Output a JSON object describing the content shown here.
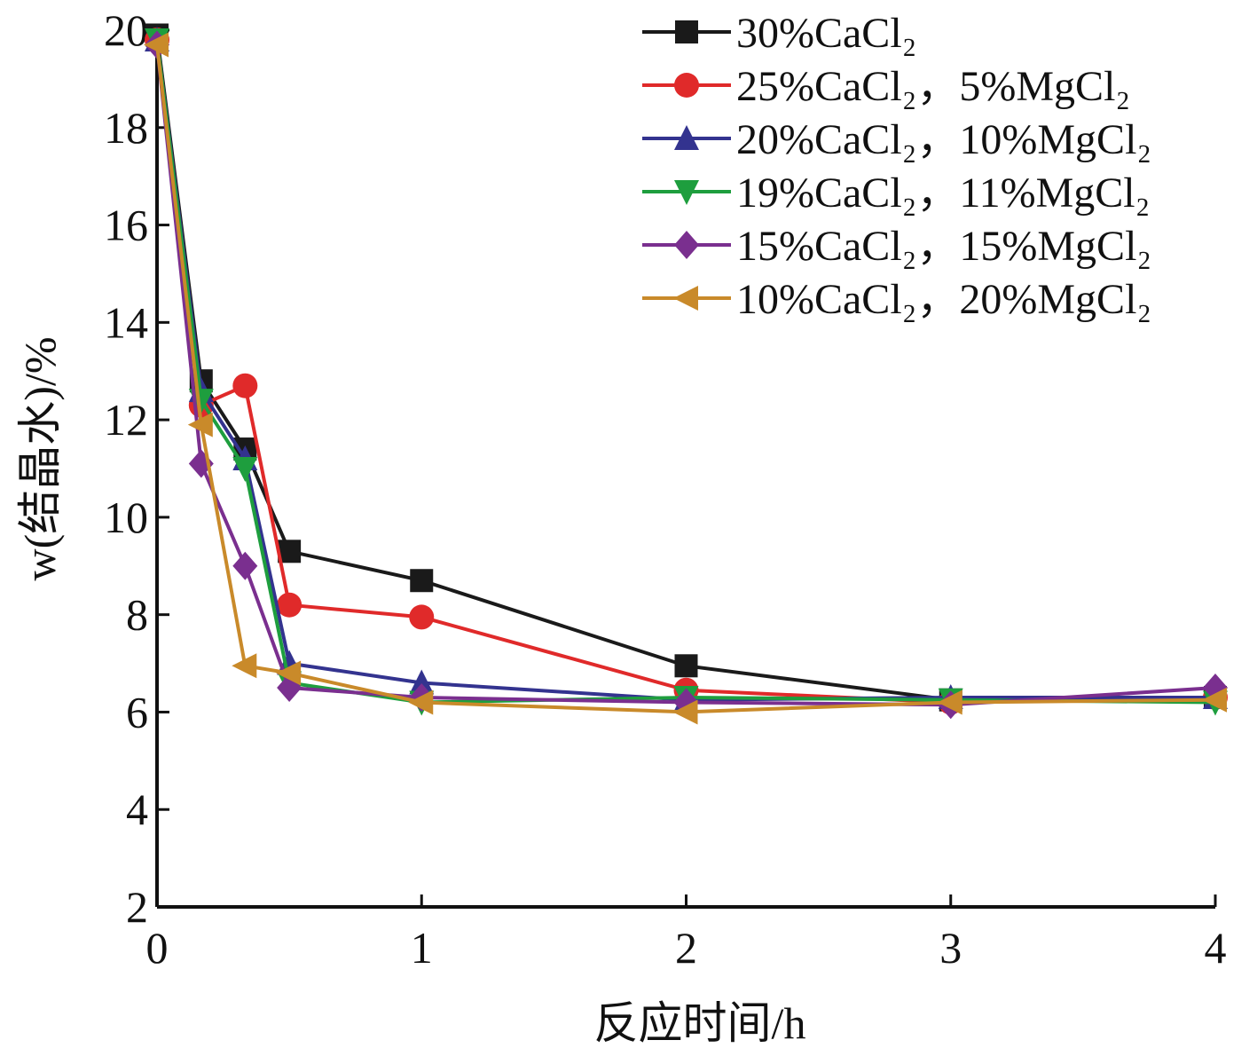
{
  "chart_data": {
    "type": "line",
    "xlabel": "反应时间/h",
    "ylabel": "w(结晶水)/%",
    "xlim": [
      0,
      4
    ],
    "ylim": [
      2,
      20
    ],
    "xticks": [
      0,
      1,
      2,
      3,
      4
    ],
    "yticks": [
      2,
      4,
      6,
      8,
      10,
      12,
      14,
      16,
      18,
      20
    ],
    "grid": false,
    "legend_position": "top-right",
    "series": [
      {
        "name": "30%CaCl₂",
        "marker": "square",
        "color": "#1a1a1a",
        "x": [
          0,
          0.167,
          0.333,
          0.5,
          1,
          2,
          3,
          4
        ],
        "y": [
          19.9,
          12.8,
          11.4,
          9.3,
          8.7,
          6.95,
          6.25,
          6.3
        ]
      },
      {
        "name": "25%CaCl₂，5%MgCl₂",
        "marker": "circle",
        "color": "#e02a2a",
        "x": [
          0,
          0.167,
          0.333,
          0.5,
          1,
          2,
          3,
          4
        ],
        "y": [
          19.8,
          12.3,
          12.7,
          8.2,
          7.95,
          6.45,
          6.2,
          6.3
        ]
      },
      {
        "name": "20%CaCl₂，10%MgCl₂",
        "marker": "triangle-up",
        "color": "#33338f",
        "x": [
          0,
          0.167,
          0.333,
          0.5,
          1,
          2,
          3,
          4
        ],
        "y": [
          19.8,
          12.6,
          11.2,
          7.0,
          6.6,
          6.25,
          6.3,
          6.3
        ]
      },
      {
        "name": "19%CaCl₂，11%MgCl₂",
        "marker": "triangle-down",
        "color": "#1e9e3e",
        "x": [
          0,
          0.167,
          0.333,
          0.5,
          1,
          2,
          3,
          4
        ],
        "y": [
          19.8,
          12.4,
          11.0,
          6.6,
          6.2,
          6.3,
          6.25,
          6.2
        ]
      },
      {
        "name": "15%CaCl₂，15%MgCl₂",
        "marker": "diamond",
        "color": "#7a2f8f",
        "x": [
          0,
          0.167,
          0.333,
          0.5,
          1,
          2,
          3,
          4
        ],
        "y": [
          19.7,
          11.1,
          9.0,
          6.5,
          6.3,
          6.2,
          6.15,
          6.5
        ]
      },
      {
        "name": "10%CaCl₂，20%MgCl₂",
        "marker": "triangle-left",
        "color": "#c98a2a",
        "x": [
          0,
          0.167,
          0.333,
          0.5,
          1,
          2,
          3,
          4
        ],
        "y": [
          19.7,
          11.9,
          6.95,
          6.8,
          6.2,
          6.0,
          6.2,
          6.25
        ]
      }
    ]
  }
}
